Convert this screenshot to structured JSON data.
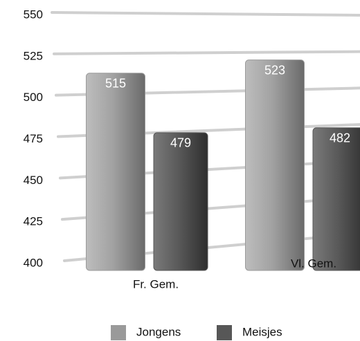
{
  "chart_data": {
    "type": "bar",
    "categories": [
      "Fr. Gem.",
      "Vl. Gem."
    ],
    "series": [
      {
        "name": "Jongens",
        "color": "#9a9a9a",
        "values": [
          515,
          523
        ]
      },
      {
        "name": "Meisjes",
        "color": "#575757",
        "values": [
          479,
          482
        ]
      }
    ],
    "ylim": [
      400,
      550
    ],
    "yticks": [
      400,
      425,
      450,
      475,
      500,
      525,
      550
    ],
    "grid": true
  }
}
